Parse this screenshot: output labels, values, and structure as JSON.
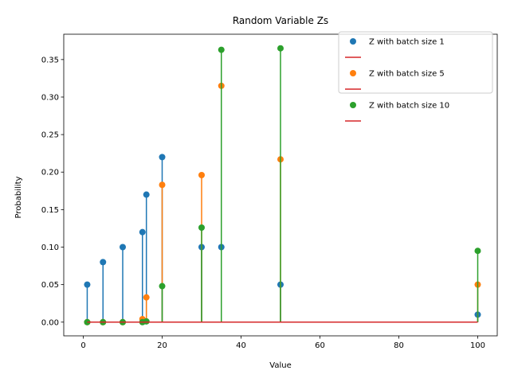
{
  "chart_data": {
    "type": "scatter",
    "style": "stem",
    "title": "Random Variable Zs",
    "xlabel": "Value",
    "ylabel": "Probability",
    "xlim": [
      -4.95,
      104.95
    ],
    "ylim": [
      -0.018275,
      0.383775
    ],
    "xticks": [
      0,
      20,
      40,
      60,
      80,
      100
    ],
    "xtick_labels": [
      "0",
      "20",
      "40",
      "60",
      "80",
      "100"
    ],
    "yticks": [
      0.0,
      0.05,
      0.1,
      0.15,
      0.2,
      0.25,
      0.3,
      0.35
    ],
    "ytick_labels": [
      "0.00",
      "0.05",
      "0.10",
      "0.15",
      "0.20",
      "0.25",
      "0.30",
      "0.35"
    ],
    "grid": false,
    "legend_position": "top-right",
    "x": [
      1,
      5,
      10,
      15,
      16,
      20,
      30,
      35,
      50,
      100
    ],
    "baseline": {
      "y": 0,
      "color": "#d62728",
      "x_range": [
        1,
        100
      ]
    },
    "series": [
      {
        "name": "Z with batch size 1",
        "color": "#1f77b4",
        "values": [
          0.05,
          0.08,
          0.1,
          0.12,
          0.17,
          0.22,
          0.1,
          0.1,
          0.05,
          0.01
        ]
      },
      {
        "name": "Z with batch size 5",
        "color": "#ff7f0e",
        "values": [
          0.0,
          0.0,
          0.0,
          0.004,
          0.033,
          0.183,
          0.196,
          0.315,
          0.217,
          0.05
        ]
      },
      {
        "name": "Z with batch size 10",
        "color": "#2ca02c",
        "values": [
          0.0,
          0.0,
          0.0,
          0.0,
          0.001,
          0.048,
          0.126,
          0.363,
          0.365,
          0.095
        ]
      }
    ]
  }
}
